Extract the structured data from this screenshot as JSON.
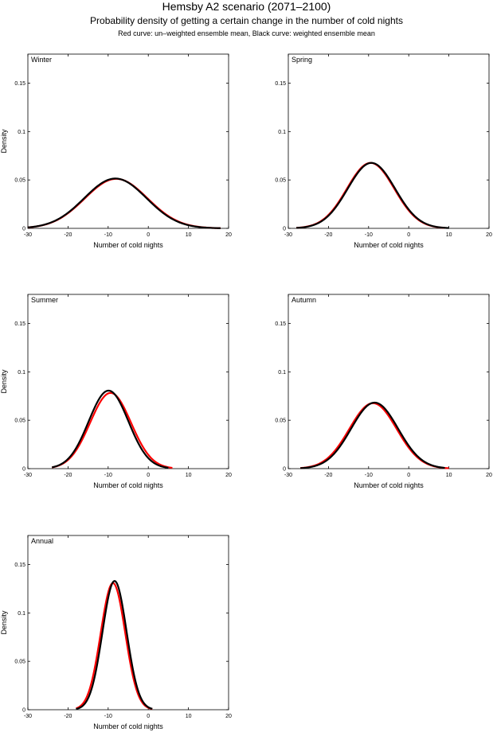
{
  "figure": {
    "title": "Hemsby A2 scenario (2071–2100)",
    "subtitle": "Probability density of getting a certain change in the number of cold nights",
    "legend_note": "Red curve: un–weighted ensemble mean, Black curve: weighted ensemble mean"
  },
  "colors": {
    "unweighted": "#ff0000",
    "weighted": "#000000"
  },
  "chart_data": [
    {
      "type": "line",
      "panel": "Winter",
      "xlabel": "Number of cold nights",
      "ylabel": "Density",
      "xlim": [
        -30,
        20
      ],
      "ylim": [
        0,
        0.18
      ],
      "xticks": [
        "-30",
        "-20",
        "-10",
        "0",
        "10",
        "20"
      ],
      "yticks": [
        "0",
        "0.05",
        "0.1",
        "0.15"
      ],
      "grid": false,
      "series": [
        {
          "name": "un-weighted ensemble mean",
          "color": "#ff0000",
          "mean": -8.0,
          "sd": 7.8,
          "x_range": [
            -30,
            18
          ]
        },
        {
          "name": "weighted ensemble mean",
          "color": "#000000",
          "mean": -8.2,
          "sd": 7.75,
          "x_range": [
            -30,
            18
          ]
        }
      ]
    },
    {
      "type": "line",
      "panel": "Spring",
      "xlabel": "Number of cold nights",
      "ylabel": "",
      "xlim": [
        -30,
        20
      ],
      "ylim": [
        0,
        0.18
      ],
      "xticks": [
        "-30",
        "-20",
        "-10",
        "0",
        "10",
        "20"
      ],
      "yticks": [
        "0",
        "0.05",
        "0.1",
        "0.15"
      ],
      "grid": false,
      "series": [
        {
          "name": "un-weighted ensemble mean",
          "color": "#ff0000",
          "mean": -9.5,
          "sd": 5.9,
          "x_range": [
            -28,
            9
          ]
        },
        {
          "name": "weighted ensemble mean",
          "color": "#000000",
          "mean": -9.3,
          "sd": 5.9,
          "x_range": [
            -28,
            10
          ]
        }
      ]
    },
    {
      "type": "line",
      "panel": "Summer",
      "xlabel": "Number of cold nights",
      "ylabel": "Density",
      "xlim": [
        -30,
        20
      ],
      "ylim": [
        0,
        0.18
      ],
      "xticks": [
        "-30",
        "-20",
        "-10",
        "0",
        "10",
        "20"
      ],
      "yticks": [
        "0",
        "0.05",
        "0.1",
        "0.15"
      ],
      "grid": false,
      "series": [
        {
          "name": "un-weighted ensemble mean",
          "color": "#ff0000",
          "mean": -9.4,
          "sd": 5.1,
          "x_range": [
            -24,
            6
          ]
        },
        {
          "name": "weighted ensemble mean",
          "color": "#000000",
          "mean": -9.9,
          "sd": 4.95,
          "x_range": [
            -24,
            5
          ]
        }
      ]
    },
    {
      "type": "line",
      "panel": "Autumn",
      "xlabel": "Number of cold nights",
      "ylabel": "",
      "xlim": [
        -30,
        20
      ],
      "ylim": [
        0,
        0.18
      ],
      "xticks": [
        "-30",
        "-20",
        "-10",
        "0",
        "10",
        "20"
      ],
      "yticks": [
        "0",
        "0.05",
        "0.1",
        "0.15"
      ],
      "grid": false,
      "series": [
        {
          "name": "un-weighted ensemble mean",
          "color": "#ff0000",
          "mean": -8.9,
          "sd": 5.9,
          "x_range": [
            -27,
            10
          ]
        },
        {
          "name": "weighted ensemble mean",
          "color": "#000000",
          "mean": -8.5,
          "sd": 5.85,
          "x_range": [
            -27,
            9
          ]
        }
      ]
    },
    {
      "type": "line",
      "panel": "Annual",
      "xlabel": "Number of cold nights",
      "ylabel": "Density",
      "xlim": [
        -30,
        20
      ],
      "ylim": [
        0,
        0.18
      ],
      "xticks": [
        "-30",
        "-20",
        "-10",
        "0",
        "10",
        "20"
      ],
      "yticks": [
        "0",
        "0.05",
        "0.1",
        "0.15"
      ],
      "grid": false,
      "series": [
        {
          "name": "un-weighted ensemble mean",
          "color": "#ff0000",
          "mean": -8.8,
          "sd": 3.05,
          "x_range": [
            -18,
            1
          ]
        },
        {
          "name": "weighted ensemble mean",
          "color": "#000000",
          "mean": -8.4,
          "sd": 3.0,
          "x_range": [
            -18,
            1
          ]
        }
      ]
    }
  ]
}
